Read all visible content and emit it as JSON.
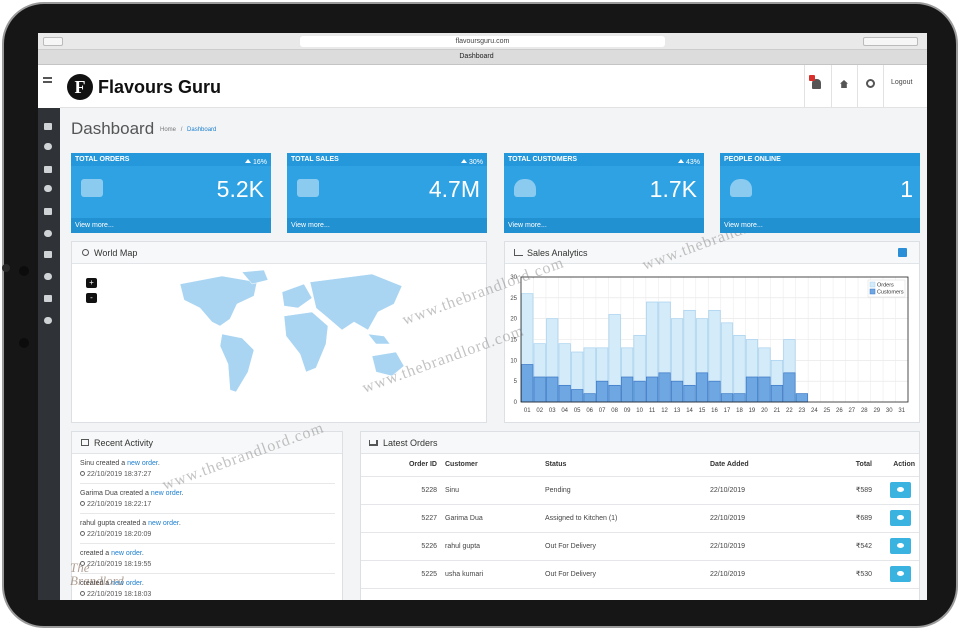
{
  "browser": {
    "url": "flavoursguru.com",
    "tab": "Dashboard"
  },
  "header": {
    "logo_letter": "F",
    "brand": "Flavours Guru",
    "logout": "Logout"
  },
  "page": {
    "title": "Dashboard",
    "breadcrumb": [
      "Home",
      "Dashboard"
    ],
    "separator": "/"
  },
  "stats": [
    {
      "label": "TOTAL ORDERS",
      "change": "16%",
      "value": "5.2K",
      "link": "View more..."
    },
    {
      "label": "TOTAL SALES",
      "change": "30%",
      "value": "4.7M",
      "link": "View more..."
    },
    {
      "label": "TOTAL CUSTOMERS",
      "change": "43%",
      "value": "1.7K",
      "link": "View more..."
    },
    {
      "label": "PEOPLE ONLINE",
      "value": "1",
      "link": "View more..."
    }
  ],
  "world_map": {
    "title": "World Map",
    "zoom_in": "+",
    "zoom_out": "-"
  },
  "chart_data": {
    "type": "bar",
    "title": "Sales Analytics",
    "categories": [
      "01",
      "02",
      "03",
      "04",
      "05",
      "06",
      "07",
      "08",
      "09",
      "10",
      "11",
      "12",
      "13",
      "14",
      "15",
      "16",
      "17",
      "18",
      "19",
      "20",
      "21",
      "22",
      "23",
      "24",
      "25",
      "26",
      "27",
      "28",
      "29",
      "30",
      "31"
    ],
    "series": [
      {
        "name": "Orders",
        "color": "#d4ebf9",
        "values": [
          26,
          14,
          20,
          14,
          12,
          13,
          13,
          21,
          13,
          16,
          24,
          24,
          20,
          22,
          20,
          22,
          19,
          16,
          15,
          13,
          10,
          15,
          2,
          0,
          0,
          0,
          0,
          0,
          0,
          0,
          0
        ]
      },
      {
        "name": "Customers",
        "color": "#6ea7e2",
        "values": [
          9,
          6,
          6,
          4,
          3,
          2,
          5,
          4,
          6,
          5,
          6,
          7,
          5,
          4,
          7,
          5,
          2,
          2,
          6,
          6,
          4,
          7,
          2,
          0,
          0,
          0,
          0,
          0,
          0,
          0,
          0
        ]
      }
    ],
    "ylim": [
      0,
      30
    ],
    "yticks": [
      0,
      5,
      10,
      15,
      20,
      25,
      30
    ],
    "grid": true,
    "legend": "top-right"
  },
  "recent_activity": {
    "title": "Recent Activity",
    "items": [
      {
        "name": "Sinu",
        "action": "created a",
        "link": "new order",
        "end": ".",
        "time": "22/10/2019 18:37:27"
      },
      {
        "name": "Garima Dua",
        "action": "created a",
        "link": "new order",
        "end": ".",
        "time": "22/10/2019 18:22:17"
      },
      {
        "name": "rahul gupta",
        "action": "created a",
        "link": "new order",
        "end": ".",
        "time": "22/10/2019 18:20:09"
      },
      {
        "action": "created a",
        "link": "new order",
        "end": ".",
        "time": "22/10/2019 18:19:55"
      },
      {
        "action": "created a",
        "link": "new order",
        "end": ".",
        "time": "22/10/2019 18:18:03"
      }
    ]
  },
  "latest_orders": {
    "title": "Latest Orders",
    "columns": [
      "Order ID",
      "Customer",
      "Status",
      "Date Added",
      "Total",
      "Action"
    ],
    "rows": [
      [
        "5228",
        "Sinu",
        "Pending",
        "22/10/2019",
        "₹589"
      ],
      [
        "5227",
        "Garima Dua",
        "Assigned to Kitchen (1)",
        "22/10/2019",
        "₹689"
      ],
      [
        "5226",
        "rahul gupta",
        "Out For Delivery",
        "22/10/2019",
        "₹542"
      ],
      [
        "5225",
        "usha kumari",
        "Out For Delivery",
        "22/10/2019",
        "₹530"
      ]
    ]
  },
  "watermark": "www.thebrandlord.com",
  "watermark_logo": "The Brandlord"
}
